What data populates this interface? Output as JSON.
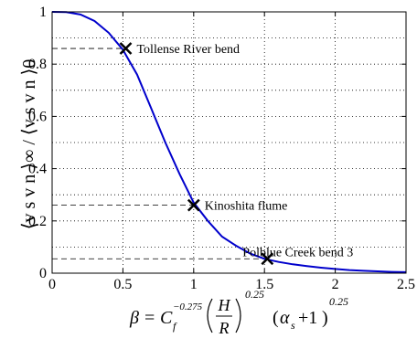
{
  "chart_data": {
    "type": "line",
    "xlim": [
      0,
      2.5
    ],
    "ylim": [
      0,
      1
    ],
    "grid": true,
    "x_ticks": [
      {
        "value": 0,
        "label": "0"
      },
      {
        "value": 0.5,
        "label": "0.5"
      },
      {
        "value": 1,
        "label": "1"
      },
      {
        "value": 1.5,
        "label": "1.5"
      },
      {
        "value": 2,
        "label": "2"
      },
      {
        "value": 2.5,
        "label": "2.5"
      }
    ],
    "y_ticks": [
      {
        "value": 0,
        "label": "0"
      },
      {
        "value": 0.2,
        "label": "0.2"
      },
      {
        "value": 0.4,
        "label": "0.4"
      },
      {
        "value": 0.6,
        "label": "0.6"
      },
      {
        "value": 0.8,
        "label": "0.8"
      },
      {
        "value": 1,
        "label": "1"
      }
    ],
    "ylabel": {
      "numer": "⟨v s v n ⟩∞",
      "slash": "/",
      "denom": "⟨v s v n ⟩0"
    },
    "xlabel": {
      "beta": "β",
      "eq": "=",
      "C": "C",
      "f": "f",
      "exp1": "−0.275",
      "H": "H",
      "R": "R",
      "exp2": "0.25",
      "alpha": "α",
      "s": "s",
      "plus_one": "+1",
      "exp3": "0.25"
    },
    "series": [
      {
        "color": "#0000cc",
        "x": [
          0,
          0.1,
          0.2,
          0.3,
          0.4,
          0.5,
          0.6,
          0.7,
          0.8,
          0.9,
          1.0,
          1.1,
          1.2,
          1.3,
          1.4,
          1.5,
          1.6,
          1.7,
          1.8,
          1.9,
          2.0,
          2.1,
          2.2,
          2.3,
          2.4,
          2.5
        ],
        "values": [
          1.0,
          0.999,
          0.99,
          0.965,
          0.92,
          0.855,
          0.76,
          0.63,
          0.5,
          0.38,
          0.27,
          0.2,
          0.14,
          0.105,
          0.075,
          0.055,
          0.043,
          0.034,
          0.027,
          0.021,
          0.016,
          0.012,
          0.009,
          0.007,
          0.005,
          0.004
        ]
      }
    ],
    "markers": [
      {
        "label": "Tollense River bend",
        "x": 0.52,
        "y": 0.86
      },
      {
        "label": "Kinoshita flume",
        "x": 1.0,
        "y": 0.26
      },
      {
        "label": "Polblue Creek bend 3",
        "x": 1.52,
        "y": 0.055
      }
    ]
  }
}
